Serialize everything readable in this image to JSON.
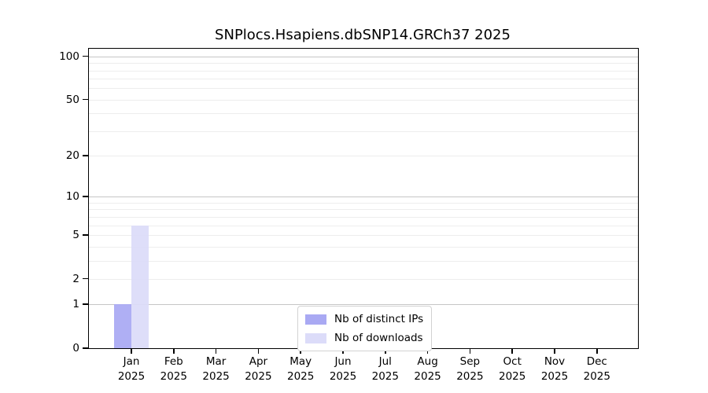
{
  "chart_data": {
    "type": "bar",
    "title": "SNPlocs.Hsapiens.dbSNP14.GRCh37 2025",
    "categories": [
      {
        "label": "Jan",
        "sublabel": "2025"
      },
      {
        "label": "Feb",
        "sublabel": "2025"
      },
      {
        "label": "Mar",
        "sublabel": "2025"
      },
      {
        "label": "Apr",
        "sublabel": "2025"
      },
      {
        "label": "May",
        "sublabel": "2025"
      },
      {
        "label": "Jun",
        "sublabel": "2025"
      },
      {
        "label": "Jul",
        "sublabel": "2025"
      },
      {
        "label": "Aug",
        "sublabel": "2025"
      },
      {
        "label": "Sep",
        "sublabel": "2025"
      },
      {
        "label": "Oct",
        "sublabel": "2025"
      },
      {
        "label": "Nov",
        "sublabel": "2025"
      },
      {
        "label": "Dec",
        "sublabel": "2025"
      }
    ],
    "series": [
      {
        "name": "Nb of distinct IPs",
        "color": "#a9a9f3",
        "values": [
          1,
          0,
          0,
          0,
          0,
          0,
          0,
          0,
          0,
          0,
          0,
          0
        ]
      },
      {
        "name": "Nb of downloads",
        "color": "#dcdcf9",
        "values": [
          6,
          0,
          0,
          0,
          0,
          0,
          0,
          0,
          0,
          0,
          0,
          0
        ]
      }
    ],
    "y_axis": {
      "scale": "log1p",
      "max_value": 113,
      "ticks": [
        100,
        50,
        20,
        10,
        5,
        2,
        1,
        0
      ],
      "major_gridlines": [
        1,
        10,
        100
      ],
      "minor_gridlines": [
        2,
        3,
        4,
        5,
        6,
        7,
        8,
        9,
        20,
        30,
        40,
        50,
        60,
        70,
        80,
        90
      ],
      "gridline_color_major": "#c6c6c6",
      "gridline_color_minor": "#ededed"
    },
    "legend": {
      "position": "bottom-center"
    }
  }
}
